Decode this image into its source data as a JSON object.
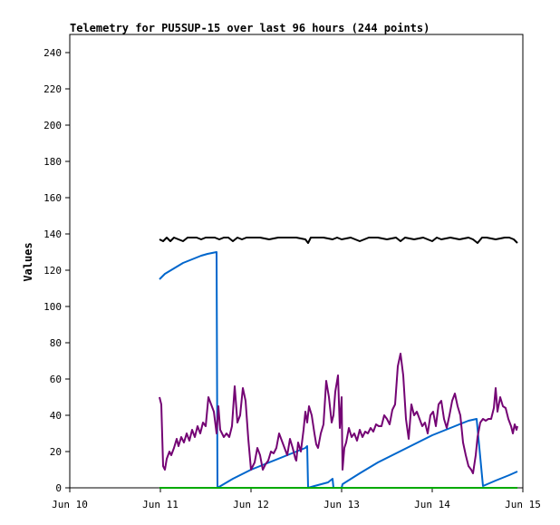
{
  "chart_data": {
    "type": "line",
    "title": "Telemetry for PU5SUP-15 over last 96 hours (244 points)",
    "xlabel": "",
    "ylabel": "Values",
    "xlim": [
      0,
      5
    ],
    "ylim": [
      0,
      250
    ],
    "x_tick_values": [
      0,
      1,
      2,
      3,
      4,
      5
    ],
    "x_tick_labels": [
      "Jun 10",
      "Jun 11",
      "Jun 12",
      "Jun 13",
      "Jun 14",
      "Jun 15"
    ],
    "y_tick_values": [
      0,
      20,
      40,
      60,
      80,
      100,
      120,
      140,
      160,
      180,
      200,
      220,
      240
    ],
    "y_tick_labels": [
      "0",
      "20",
      "40",
      "60",
      "80",
      "100",
      "120",
      "140",
      "160",
      "180",
      "200",
      "220",
      "240"
    ],
    "grid": false,
    "legend": "none",
    "series": [
      {
        "color": "#000000",
        "points": [
          [
            0.99,
            137
          ],
          [
            1.03,
            136
          ],
          [
            1.07,
            138
          ],
          [
            1.11,
            136
          ],
          [
            1.15,
            138
          ],
          [
            1.2,
            137
          ],
          [
            1.25,
            136
          ],
          [
            1.3,
            138
          ],
          [
            1.35,
            138
          ],
          [
            1.4,
            138
          ],
          [
            1.45,
            137
          ],
          [
            1.5,
            138
          ],
          [
            1.55,
            138
          ],
          [
            1.6,
            138
          ],
          [
            1.65,
            137
          ],
          [
            1.7,
            138
          ],
          [
            1.75,
            138
          ],
          [
            1.8,
            136
          ],
          [
            1.85,
            138
          ],
          [
            1.9,
            137
          ],
          [
            1.95,
            138
          ],
          [
            2.0,
            138
          ],
          [
            2.1,
            138
          ],
          [
            2.2,
            137
          ],
          [
            2.3,
            138
          ],
          [
            2.4,
            138
          ],
          [
            2.5,
            138
          ],
          [
            2.6,
            137
          ],
          [
            2.63,
            135
          ],
          [
            2.66,
            138
          ],
          [
            2.7,
            138
          ],
          [
            2.8,
            138
          ],
          [
            2.9,
            137
          ],
          [
            2.95,
            138
          ],
          [
            3.0,
            137
          ],
          [
            3.1,
            138
          ],
          [
            3.2,
            136
          ],
          [
            3.3,
            138
          ],
          [
            3.4,
            138
          ],
          [
            3.5,
            137
          ],
          [
            3.6,
            138
          ],
          [
            3.65,
            136
          ],
          [
            3.7,
            138
          ],
          [
            3.8,
            137
          ],
          [
            3.9,
            138
          ],
          [
            4.0,
            136
          ],
          [
            4.05,
            138
          ],
          [
            4.1,
            137
          ],
          [
            4.2,
            138
          ],
          [
            4.3,
            137
          ],
          [
            4.4,
            138
          ],
          [
            4.45,
            137
          ],
          [
            4.5,
            135
          ],
          [
            4.55,
            138
          ],
          [
            4.6,
            138
          ],
          [
            4.7,
            137
          ],
          [
            4.8,
            138
          ],
          [
            4.85,
            138
          ],
          [
            4.9,
            137
          ],
          [
            4.94,
            135
          ]
        ]
      },
      {
        "color": "#0066cc",
        "points": [
          [
            0.99,
            115
          ],
          [
            1.05,
            118
          ],
          [
            1.15,
            121
          ],
          [
            1.25,
            124
          ],
          [
            1.35,
            126
          ],
          [
            1.45,
            128
          ],
          [
            1.52,
            129
          ],
          [
            1.62,
            130
          ],
          [
            1.63,
            0
          ],
          [
            1.8,
            5
          ],
          [
            2.0,
            10
          ],
          [
            2.2,
            14
          ],
          [
            2.4,
            18
          ],
          [
            2.6,
            22
          ],
          [
            2.62,
            23
          ],
          [
            2.63,
            0
          ],
          [
            2.7,
            1
          ],
          [
            2.85,
            3
          ],
          [
            2.9,
            5
          ],
          [
            2.91,
            0
          ],
          [
            3.0,
            0
          ],
          [
            3.01,
            2
          ],
          [
            3.2,
            8
          ],
          [
            3.4,
            14
          ],
          [
            3.6,
            19
          ],
          [
            3.8,
            24
          ],
          [
            4.0,
            29
          ],
          [
            4.2,
            33
          ],
          [
            4.4,
            37
          ],
          [
            4.49,
            38
          ],
          [
            4.56,
            1
          ],
          [
            4.7,
            4
          ],
          [
            4.85,
            7
          ],
          [
            4.94,
            9
          ]
        ]
      },
      {
        "color": "#740474",
        "points": [
          [
            0.99,
            50
          ],
          [
            1.01,
            46
          ],
          [
            1.03,
            12
          ],
          [
            1.05,
            10
          ],
          [
            1.07,
            16
          ],
          [
            1.1,
            20
          ],
          [
            1.12,
            18
          ],
          [
            1.15,
            22
          ],
          [
            1.18,
            27
          ],
          [
            1.2,
            23
          ],
          [
            1.23,
            28
          ],
          [
            1.26,
            25
          ],
          [
            1.29,
            30
          ],
          [
            1.32,
            26
          ],
          [
            1.35,
            32
          ],
          [
            1.38,
            28
          ],
          [
            1.41,
            34
          ],
          [
            1.44,
            30
          ],
          [
            1.47,
            36
          ],
          [
            1.5,
            34
          ],
          [
            1.53,
            50
          ],
          [
            1.56,
            46
          ],
          [
            1.59,
            42
          ],
          [
            1.62,
            30
          ],
          [
            1.64,
            45
          ],
          [
            1.66,
            32
          ],
          [
            1.7,
            28
          ],
          [
            1.73,
            30
          ],
          [
            1.76,
            28
          ],
          [
            1.79,
            34
          ],
          [
            1.82,
            56
          ],
          [
            1.85,
            36
          ],
          [
            1.88,
            40
          ],
          [
            1.91,
            55
          ],
          [
            1.94,
            48
          ],
          [
            1.97,
            27
          ],
          [
            2.0,
            10
          ],
          [
            2.02,
            12
          ],
          [
            2.04,
            14
          ],
          [
            2.07,
            22
          ],
          [
            2.1,
            18
          ],
          [
            2.13,
            10
          ],
          [
            2.16,
            13
          ],
          [
            2.19,
            15
          ],
          [
            2.22,
            20
          ],
          [
            2.25,
            19
          ],
          [
            2.28,
            22
          ],
          [
            2.31,
            30
          ],
          [
            2.34,
            26
          ],
          [
            2.37,
            22
          ],
          [
            2.4,
            18
          ],
          [
            2.43,
            27
          ],
          [
            2.46,
            22
          ],
          [
            2.49,
            16
          ],
          [
            2.5,
            15
          ],
          [
            2.52,
            25
          ],
          [
            2.55,
            20
          ],
          [
            2.58,
            32
          ],
          [
            2.6,
            42
          ],
          [
            2.62,
            36
          ],
          [
            2.64,
            45
          ],
          [
            2.67,
            40
          ],
          [
            2.7,
            30
          ],
          [
            2.72,
            24
          ],
          [
            2.74,
            22
          ],
          [
            2.77,
            30
          ],
          [
            2.8,
            35
          ],
          [
            2.83,
            59
          ],
          [
            2.86,
            50
          ],
          [
            2.89,
            36
          ],
          [
            2.91,
            40
          ],
          [
            2.93,
            53
          ],
          [
            2.96,
            62
          ],
          [
            2.98,
            33
          ],
          [
            3.0,
            50
          ],
          [
            3.01,
            10
          ],
          [
            3.03,
            22
          ],
          [
            3.05,
            25
          ],
          [
            3.08,
            33
          ],
          [
            3.11,
            28
          ],
          [
            3.14,
            30
          ],
          [
            3.17,
            26
          ],
          [
            3.2,
            32
          ],
          [
            3.23,
            28
          ],
          [
            3.26,
            31
          ],
          [
            3.29,
            30
          ],
          [
            3.32,
            33
          ],
          [
            3.35,
            31
          ],
          [
            3.38,
            35
          ],
          [
            3.41,
            34
          ],
          [
            3.44,
            34
          ],
          [
            3.47,
            40
          ],
          [
            3.5,
            38
          ],
          [
            3.53,
            35
          ],
          [
            3.56,
            43
          ],
          [
            3.59,
            46
          ],
          [
            3.62,
            67
          ],
          [
            3.65,
            74
          ],
          [
            3.68,
            62
          ],
          [
            3.71,
            38
          ],
          [
            3.74,
            27
          ],
          [
            3.77,
            46
          ],
          [
            3.8,
            40
          ],
          [
            3.83,
            42
          ],
          [
            3.86,
            38
          ],
          [
            3.89,
            34
          ],
          [
            3.92,
            36
          ],
          [
            3.95,
            30
          ],
          [
            3.98,
            40
          ],
          [
            4.01,
            42
          ],
          [
            4.04,
            34
          ],
          [
            4.07,
            46
          ],
          [
            4.1,
            48
          ],
          [
            4.13,
            38
          ],
          [
            4.16,
            33
          ],
          [
            4.19,
            40
          ],
          [
            4.22,
            48
          ],
          [
            4.25,
            52
          ],
          [
            4.28,
            45
          ],
          [
            4.31,
            40
          ],
          [
            4.34,
            25
          ],
          [
            4.37,
            18
          ],
          [
            4.4,
            12
          ],
          [
            4.43,
            10
          ],
          [
            4.45,
            8
          ],
          [
            4.48,
            18
          ],
          [
            4.5,
            28
          ],
          [
            4.53,
            36
          ],
          [
            4.56,
            38
          ],
          [
            4.59,
            37
          ],
          [
            4.62,
            38
          ],
          [
            4.65,
            38
          ],
          [
            4.68,
            44
          ],
          [
            4.7,
            55
          ],
          [
            4.72,
            42
          ],
          [
            4.75,
            50
          ],
          [
            4.78,
            45
          ],
          [
            4.81,
            44
          ],
          [
            4.84,
            38
          ],
          [
            4.87,
            34
          ],
          [
            4.89,
            30
          ],
          [
            4.91,
            35
          ],
          [
            4.93,
            32
          ],
          [
            4.94,
            34
          ]
        ]
      },
      {
        "color": "#00aa00",
        "points": [
          [
            0.99,
            0
          ],
          [
            4.94,
            0
          ]
        ]
      }
    ]
  }
}
